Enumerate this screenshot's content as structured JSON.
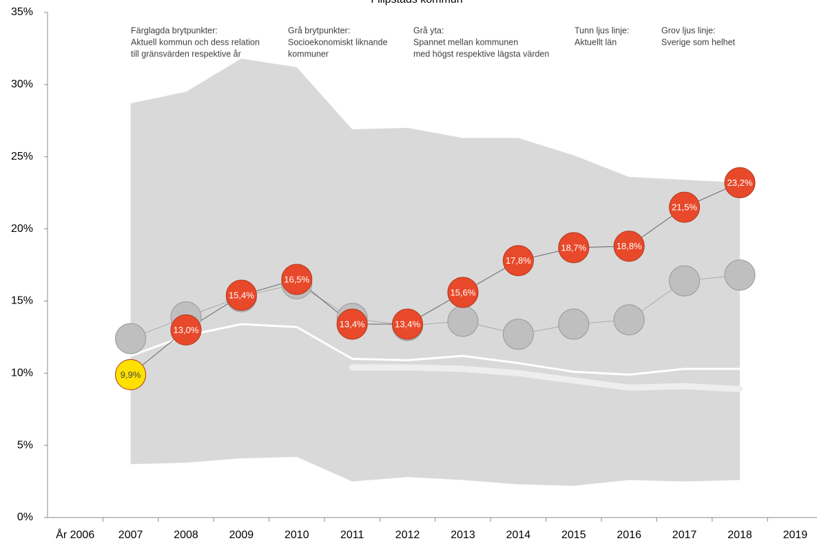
{
  "chart_data": {
    "type": "line",
    "title": "Filipstads kommun",
    "categories": [
      "År 2006",
      "2007",
      "2008",
      "2009",
      "2010",
      "2011",
      "2012",
      "2013",
      "2014",
      "2015",
      "2016",
      "2017",
      "2018",
      "2019"
    ],
    "ylim": [
      0,
      35
    ],
    "yticks": [
      {
        "value": 0,
        "label": "0%"
      },
      {
        "value": 5,
        "label": "5%"
      },
      {
        "value": 10,
        "label": "10%"
      },
      {
        "value": 15,
        "label": "15%"
      },
      {
        "value": 20,
        "label": "20%"
      },
      {
        "value": 25,
        "label": "25%"
      },
      {
        "value": 30,
        "label": "30%"
      },
      {
        "value": 35,
        "label": "35%"
      }
    ],
    "band": {
      "color": "#d9d9d9",
      "upper": [
        null,
        28.7,
        29.5,
        31.8,
        31.2,
        26.9,
        27.0,
        26.3,
        26.3,
        25.1,
        23.6,
        23.4,
        23.2,
        null
      ],
      "lower": [
        null,
        3.7,
        3.8,
        4.1,
        4.2,
        2.5,
        2.8,
        2.6,
        2.3,
        2.2,
        2.6,
        2.5,
        2.6,
        null
      ]
    },
    "lines": [
      {
        "color": "#ffffff",
        "width": 3,
        "values": [
          null,
          11.2,
          12.6,
          13.4,
          13.2,
          11.0,
          10.9,
          11.2,
          10.7,
          10.1,
          9.9,
          10.3,
          10.3,
          null
        ]
      },
      {
        "color": "#eeeeee",
        "width": 9,
        "values": [
          null,
          null,
          null,
          null,
          null,
          10.4,
          10.4,
          10.3,
          10.0,
          9.5,
          9.0,
          9.1,
          8.9,
          null
        ]
      }
    ],
    "points": [
      {
        "line_color": "#aaaaaa",
        "colors": [
          null,
          "#bfbfbf",
          "#bfbfbf",
          "#bfbfbf",
          "#bfbfbf",
          "#bfbfbf",
          "#bfbfbf",
          "#bfbfbf",
          "#bfbfbf",
          "#bfbfbf",
          "#bfbfbf",
          "#bfbfbf",
          "#bfbfbf",
          null
        ],
        "values": [
          null,
          12.4,
          13.9,
          15.3,
          16.2,
          13.8,
          13.3,
          13.6,
          12.7,
          13.4,
          13.7,
          16.4,
          16.8,
          null
        ]
      },
      {
        "line_color": "#666666",
        "colors": [
          null,
          "#ffe000",
          "#e8492a",
          "#e8492a",
          "#e8492a",
          "#e8492a",
          "#e8492a",
          "#e8492a",
          "#e8492a",
          "#e8492a",
          "#e8492a",
          "#e8492a",
          "#e8492a",
          null
        ],
        "values": [
          null,
          9.9,
          13.0,
          15.4,
          16.5,
          13.4,
          13.4,
          15.6,
          17.8,
          18.7,
          18.8,
          21.5,
          23.2,
          null
        ],
        "value_labels": [
          null,
          "9,9%",
          "13,0%",
          "15,4%",
          "16,5%",
          "13,4%",
          "13,4%",
          "15,6%",
          "17,8%",
          "18,7%",
          "18,8%",
          "21,5%",
          "23,2%",
          null
        ]
      }
    ],
    "annotations": [
      [
        "Färglagda brytpunkter:",
        "Aktuell kommun och dess relation",
        "till gränsvärden respektive år"
      ],
      [
        "Grå brytpunkter:",
        "Socioekonomiskt liknande",
        "kommuner"
      ],
      [
        "Grå yta:",
        "Spannet mellan kommunen",
        "med högst respektive lägsta värden"
      ],
      [
        "Tunn ljus linje:",
        "Aktuellt län"
      ],
      [
        "Grov ljus linje:",
        "Sverige som helhet"
      ]
    ]
  }
}
